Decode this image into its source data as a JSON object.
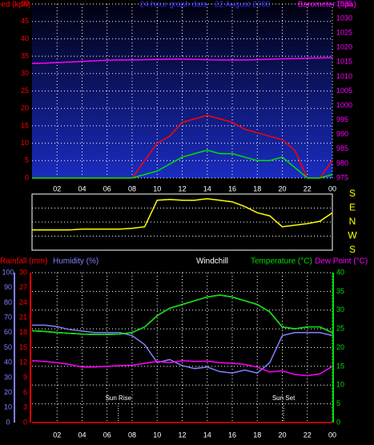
{
  "chart_data": [
    {
      "type": "line",
      "title": "24 hour graph data - 22 August 2008",
      "ylabel": "Windspeed (kph)",
      "y2label": "Barometer (hpa)",
      "x": [
        0,
        1,
        2,
        3,
        4,
        5,
        6,
        7,
        8,
        9,
        10,
        11,
        12,
        13,
        14,
        15,
        16,
        17,
        18,
        19,
        20,
        21,
        22,
        23,
        24
      ],
      "xlim": [
        0,
        24
      ],
      "xticks": [
        {
          "value": 2,
          "label": "02"
        },
        {
          "value": 4,
          "label": "04"
        },
        {
          "value": 6,
          "label": "06"
        },
        {
          "value": 8,
          "label": "08"
        },
        10,
        12,
        14,
        16,
        18,
        20,
        22,
        {
          "value": 24,
          "label": "00"
        }
      ],
      "ylim": [
        0,
        50
      ],
      "yticks": [
        0,
        5,
        10,
        15,
        20,
        25,
        30,
        35,
        40,
        45,
        50
      ],
      "y2lim": [
        975,
        1035
      ],
      "y2ticks": [
        975,
        980,
        985,
        990,
        995,
        1000,
        1005,
        1010,
        1015,
        1020,
        1025,
        1030,
        1035
      ],
      "grid": true,
      "series": [
        {
          "color": "#ff0000",
          "axis": "y",
          "values": [
            0,
            0,
            0,
            0,
            0,
            0,
            0,
            0,
            0,
            5,
            10,
            12,
            16,
            17,
            18,
            17,
            16,
            14,
            13,
            12,
            11,
            8,
            0,
            0,
            5
          ]
        },
        {
          "color": "#00e000",
          "axis": "y",
          "values": [
            0,
            0,
            0,
            0,
            0,
            0,
            0,
            0,
            0,
            1,
            2,
            4,
            6,
            7,
            8,
            7,
            7,
            6,
            5,
            5,
            6,
            3,
            0,
            0,
            1
          ]
        },
        {
          "color": "#ff00ff",
          "axis": "y2",
          "values": [
            1014.5,
            1014.6,
            1014.8,
            1015,
            1015.2,
            1015.4,
            1015.6,
            1015.7,
            1015.7,
            1015.8,
            1015.9,
            1016,
            1016,
            1015.9,
            1015.8,
            1015.7,
            1015.7,
            1015.7,
            1015.8,
            1016,
            1016.1,
            1016.2,
            1016.3,
            1016.4,
            1016.5
          ]
        }
      ]
    },
    {
      "type": "line",
      "x": [
        0,
        1,
        2,
        3,
        4,
        5,
        6,
        7,
        8,
        9,
        10,
        11,
        12,
        13,
        14,
        15,
        16,
        17,
        18,
        19,
        20,
        21,
        22,
        23,
        24
      ],
      "xlim": [
        0,
        24
      ],
      "ylim": [
        -180,
        180
      ],
      "yticks": [
        {
          "value": 180,
          "label": "S"
        },
        {
          "value": 90,
          "label": "E"
        },
        {
          "value": 0,
          "label": "N"
        },
        {
          "value": -90,
          "label": "W"
        },
        {
          "value": -180,
          "label": "S"
        }
      ],
      "grid": true,
      "series": [
        {
          "color": "#ffff00",
          "axis": "y",
          "values": [
            -50,
            -50,
            -50,
            -50,
            -45,
            -45,
            -45,
            -45,
            -40,
            -30,
            140,
            145,
            140,
            140,
            150,
            140,
            130,
            100,
            60,
            40,
            -30,
            -20,
            -10,
            5,
            60
          ]
        }
      ]
    },
    {
      "type": "line",
      "x": [
        0,
        1,
        2,
        3,
        4,
        5,
        6,
        7,
        8,
        9,
        10,
        11,
        12,
        13,
        14,
        15,
        16,
        17,
        18,
        19,
        20,
        21,
        22,
        23,
        24
      ],
      "xlim": [
        0,
        24
      ],
      "xticks": [
        {
          "value": 2,
          "label": "02"
        },
        {
          "value": 4,
          "label": "04"
        },
        {
          "value": 6,
          "label": "06"
        },
        {
          "value": 8,
          "label": "08"
        },
        10,
        12,
        14,
        16,
        18,
        20,
        22,
        {
          "value": 24,
          "label": "00"
        }
      ],
      "ylim": [
        0,
        100
      ],
      "yticks": [
        0,
        10,
        20,
        30,
        40,
        50,
        60,
        70,
        80,
        90,
        100
      ],
      "y3lim": [
        0,
        30
      ],
      "y3ticks": [
        0,
        3,
        6,
        9,
        12,
        15,
        18,
        21,
        24,
        27,
        30
      ],
      "y2lim": [
        0,
        40
      ],
      "y2ticks": [
        0,
        5,
        10,
        15,
        20,
        25,
        30,
        35,
        40
      ],
      "grid": true,
      "series": [
        {
          "name": "Rainfall (mm)",
          "color": "#ff0000",
          "axis": "y3",
          "values": [
            0,
            0,
            0,
            0,
            0,
            0,
            0,
            0,
            0,
            0,
            0,
            0,
            0,
            0,
            0,
            0,
            0,
            0,
            0,
            0,
            0,
            0,
            0,
            0,
            0
          ]
        },
        {
          "name": "Humidity (%)",
          "color": "#8080ff",
          "axis": "y",
          "values": [
            65,
            65,
            64,
            62,
            61,
            60,
            60,
            60,
            58,
            52,
            40,
            42,
            38,
            36,
            37,
            34,
            33,
            35,
            33,
            40,
            58,
            60,
            60,
            60,
            58
          ]
        },
        {
          "name": "Windchill",
          "color": "#ffffff",
          "axis": "y2",
          "values": [
            24.5,
            24.3,
            24,
            23.8,
            23.6,
            23.5,
            23.5,
            23.6,
            24,
            25.5,
            28.5,
            30.5,
            31.5,
            32.5,
            33.5,
            34,
            33.5,
            32.5,
            31.5,
            29.5,
            25.5,
            25,
            25.5,
            25.5,
            24
          ]
        },
        {
          "name": "Temperature (°C)",
          "color": "#00e000",
          "axis": "y2",
          "values": [
            24.5,
            24.3,
            24,
            23.8,
            23.6,
            23.5,
            23.5,
            23.6,
            24,
            25.5,
            28.5,
            30.5,
            31.5,
            32.5,
            33.5,
            34,
            33.5,
            32.5,
            31.5,
            29.5,
            25.5,
            25,
            25.5,
            25.5,
            24
          ]
        },
        {
          "name": "Dew Point (°C)",
          "color": "#ff00ff",
          "axis": "y2",
          "values": [
            16.5,
            16.3,
            16,
            15.5,
            14.8,
            14.8,
            15,
            15.2,
            15.3,
            15.8,
            16.3,
            16,
            16.5,
            16.3,
            16.4,
            16,
            15.8,
            15.5,
            14.8,
            13.5,
            13.8,
            12.8,
            12.5,
            13,
            15
          ]
        }
      ],
      "annotations": [
        {
          "text": "Sun Rise",
          "x": 6.9
        },
        {
          "text": "Sun Set",
          "x": 20.1
        }
      ]
    }
  ]
}
